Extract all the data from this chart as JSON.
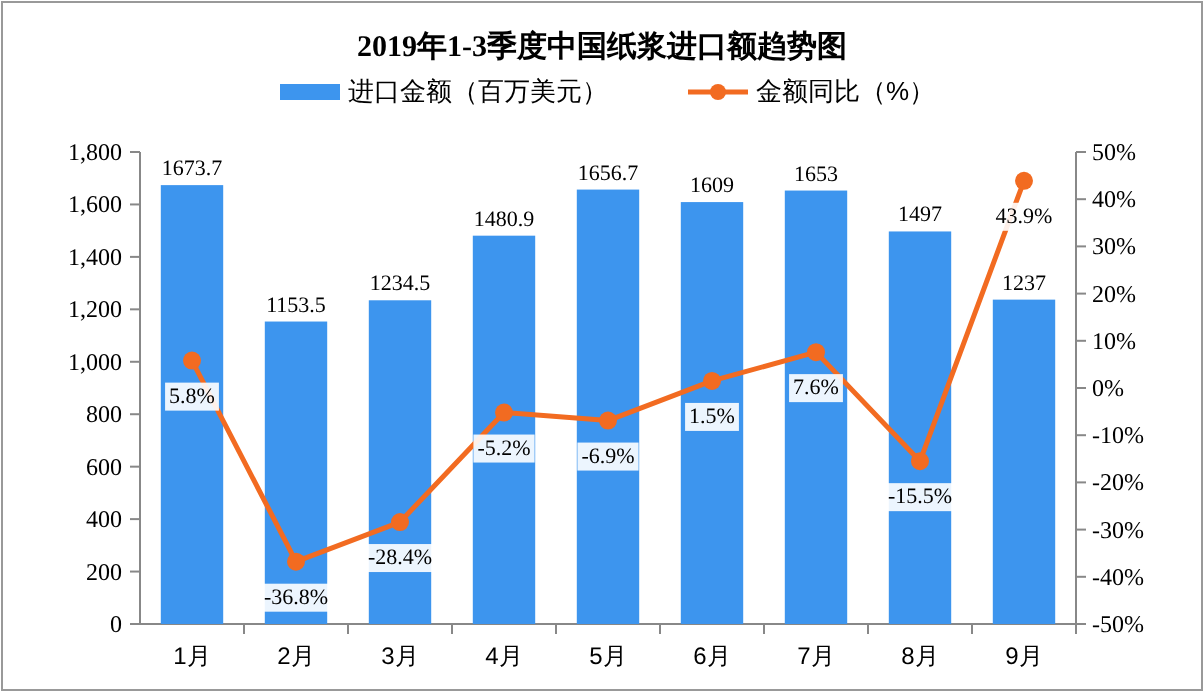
{
  "chart_data": {
    "type": "bar",
    "title": "2019年1-3季度中国纸浆进口额趋势图",
    "categories": [
      "1月",
      "2月",
      "3月",
      "4月",
      "5月",
      "6月",
      "7月",
      "8月",
      "9月"
    ],
    "series": [
      {
        "name": "进口金额（百万美元）",
        "color": "#3d95ee",
        "values": [
          1673.7,
          1153.5,
          1234.5,
          1480.9,
          1656.7,
          1609,
          1653,
          1497,
          1237
        ],
        "value_labels": [
          "1673.7",
          "1153.5",
          "1234.5",
          "1480.9",
          "1656.7",
          "1609",
          "1653",
          "1497",
          "1237"
        ]
      },
      {
        "name": "金额同比（%）",
        "type": "line",
        "axis": "y2",
        "color": "#f26b21",
        "marker": "circle",
        "values": [
          5.8,
          -36.8,
          -28.4,
          -5.2,
          -6.9,
          1.5,
          7.6,
          -15.5,
          43.9
        ],
        "value_labels": [
          "5.8%",
          "-36.8%",
          "-28.4%",
          "-5.2%",
          "-6.9%",
          "1.5%",
          "7.6%",
          "-15.5%",
          "43.9%"
        ]
      }
    ],
    "ylim": [
      0,
      1800
    ],
    "yticks": [
      0,
      200,
      400,
      600,
      800,
      {
        "value": 1000,
        "label": "1,000"
      },
      {
        "value": 1200,
        "label": "1,200"
      },
      {
        "value": 1400,
        "label": "1,400"
      },
      {
        "value": 1600,
        "label": "1,600"
      },
      {
        "value": 1800,
        "label": "1,800"
      }
    ],
    "y2lim": [
      -50,
      50
    ],
    "y2ticks": [
      {
        "value": -50,
        "label": "-50%"
      },
      {
        "value": -40,
        "label": "-40%"
      },
      {
        "value": -30,
        "label": "-30%"
      },
      {
        "value": -20,
        "label": "-20%"
      },
      {
        "value": -10,
        "label": "-10%"
      },
      {
        "value": 0,
        "label": "0%"
      },
      {
        "value": 10,
        "label": "10%"
      },
      {
        "value": 20,
        "label": "20%"
      },
      {
        "value": 30,
        "label": "30%"
      },
      {
        "value": 40,
        "label": "40%"
      },
      {
        "value": 50,
        "label": "50%"
      }
    ],
    "legend": "top",
    "grid": false
  }
}
